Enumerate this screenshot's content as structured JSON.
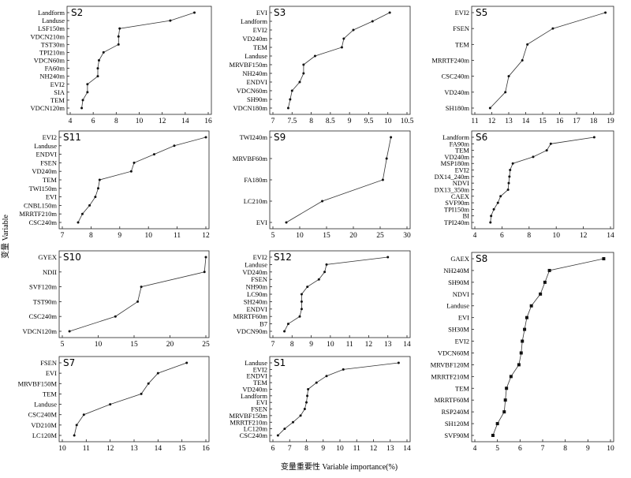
{
  "axis_label_x": "变量重要性 Variable importance(%)",
  "axis_label_y": "变量 Variable",
  "chart_data": [
    {
      "type": "line",
      "title": "S2",
      "variables": [
        "Landform",
        "Landuse",
        "LSF150m",
        "VDCN210m",
        "TST30m",
        "TPI210m",
        "VDCN60m",
        "FA60m",
        "NH240m",
        "EVI2",
        "SIA",
        "TEM",
        "VDCN120m"
      ],
      "values": [
        14.8,
        12.7,
        8.3,
        8.2,
        8.2,
        6.9,
        6.5,
        6.4,
        6.4,
        5.5,
        5.5,
        5.1,
        5.0
      ],
      "xlim": [
        4,
        16
      ],
      "xticks": [
        4,
        6,
        8,
        10,
        12,
        14,
        16
      ]
    },
    {
      "type": "line",
      "title": "S3",
      "variables": [
        "EVI",
        "Landform",
        "EVI2",
        "VD240m",
        "TEM",
        "Landuse",
        "MRVBF150m",
        "NH240m",
        "ENDVI",
        "VDCN60m",
        "SH90m",
        "VDCN180m"
      ],
      "values": [
        10.05,
        9.6,
        9.1,
        8.85,
        8.8,
        8.1,
        7.8,
        7.8,
        7.7,
        7.5,
        7.45,
        7.4
      ],
      "xlim": [
        7.0,
        10.5
      ],
      "xticks": [
        7.0,
        7.5,
        8.0,
        8.5,
        9.0,
        9.5,
        10.0,
        10.5
      ]
    },
    {
      "type": "line",
      "title": "S5",
      "variables": [
        "EVI2",
        "FSEN",
        "TEM",
        "MRRTF240m",
        "CSC240m",
        "VD240m",
        "SH180m"
      ],
      "values": [
        18.7,
        15.6,
        14.1,
        13.8,
        13.0,
        12.8,
        11.9
      ],
      "xlim": [
        11,
        19
      ],
      "xticks": [
        11,
        12,
        13,
        14,
        15,
        16,
        17,
        18,
        19
      ]
    },
    {
      "type": "line",
      "title": "S11",
      "variables": [
        "EVI2",
        "Landuse",
        "ENDVI",
        "FSEN",
        "VD240m",
        "TEM",
        "TWI150m",
        "EVI",
        "CNBL150m",
        "MRRTF210m",
        "CSC240m"
      ],
      "values": [
        12.0,
        10.9,
        10.2,
        9.5,
        9.4,
        8.3,
        8.25,
        8.15,
        7.95,
        7.7,
        7.55
      ],
      "xlim": [
        7,
        12
      ],
      "xticks": [
        7,
        8,
        9,
        10,
        11,
        12
      ]
    },
    {
      "type": "line",
      "title": "S9",
      "variables": [
        "TWI240m",
        "MRVBF60m",
        "FA180m",
        "LC210m",
        "EVI"
      ],
      "values": [
        27.0,
        26.2,
        25.5,
        14.2,
        7.5
      ],
      "xlim": [
        5,
        30
      ],
      "xticks": [
        5,
        10,
        15,
        20,
        25,
        30
      ]
    },
    {
      "type": "line",
      "title": "S6",
      "variables": [
        "Landform",
        "FA90m",
        "TEM",
        "VD240m",
        "MSP180m",
        "EVI2",
        "DX14_240m",
        "NDVI",
        "DX13_350m",
        "CAEX",
        "SVF90m",
        "TPI150m",
        "BI",
        "TPI240m"
      ],
      "values": [
        12.8,
        9.6,
        9.3,
        8.3,
        6.8,
        6.6,
        6.55,
        6.5,
        6.45,
        5.9,
        5.7,
        5.4,
        5.2,
        5.15
      ],
      "xlim": [
        4,
        14
      ],
      "xticks": [
        4,
        6,
        8,
        10,
        12,
        14
      ]
    },
    {
      "type": "line",
      "title": "S10",
      "variables": [
        "GYEX",
        "NDII",
        "SVF120m",
        "TST90m",
        "CSC240m",
        "VDCN120m"
      ],
      "values": [
        25.0,
        24.8,
        16.0,
        15.5,
        12.4,
        6.0
      ],
      "xlim": [
        5,
        25
      ],
      "xticks": [
        5,
        10,
        15,
        20,
        25
      ]
    },
    {
      "type": "line",
      "title": "S12",
      "variables": [
        "EVI2",
        "Landuse",
        "VD240m",
        "FSEN",
        "NH90m",
        "LC90m",
        "SH240m",
        "ENDVI",
        "MRRTF60m",
        "B7",
        "VDCN90m"
      ],
      "values": [
        13.0,
        9.8,
        9.7,
        9.4,
        8.8,
        8.5,
        8.5,
        8.5,
        8.4,
        7.8,
        7.6
      ],
      "xlim": [
        7,
        14
      ],
      "xticks": [
        7,
        8,
        9,
        10,
        11,
        12,
        13,
        14
      ]
    },
    {
      "type": "line",
      "title": "S8",
      "variables": [
        "GAEX",
        "NH240M",
        "SH90M",
        "NDVI",
        "Landuse",
        "EVI",
        "SH30M",
        "EVI2",
        "VDCN60M",
        "MRVBF120M",
        "MRRTF210M",
        "TEM",
        "MRRTF60M",
        "RSP240M",
        "SH120M",
        "SVF90M"
      ],
      "values": [
        9.7,
        7.3,
        7.1,
        6.9,
        6.5,
        6.3,
        6.2,
        6.1,
        6.05,
        5.95,
        5.6,
        5.4,
        5.35,
        5.3,
        5.0,
        4.8
      ],
      "xlim": [
        4,
        10
      ],
      "xticks": [
        4,
        5,
        6,
        7,
        8,
        9,
        10
      ]
    },
    {
      "type": "line",
      "title": "S7",
      "variables": [
        "FSEN",
        "EVI",
        "MRVBF150M",
        "TEM",
        "Landuse",
        "CSC240M",
        "VD210M",
        "LC120M"
      ],
      "values": [
        15.2,
        14.0,
        13.6,
        13.3,
        12.0,
        10.9,
        10.6,
        10.5
      ],
      "xlim": [
        10,
        16
      ],
      "xticks": [
        10,
        11,
        12,
        13,
        14,
        15,
        16
      ]
    },
    {
      "type": "line",
      "title": "S1",
      "variables": [
        "Landuse",
        "EVI2",
        "ENDVI",
        "TEM",
        "VD240m",
        "Landform",
        "EVI",
        "FSEN",
        "MRVBF150m",
        "MRRTF210m",
        "LC120m",
        "CSC240m"
      ],
      "values": [
        13.5,
        10.2,
        9.2,
        8.6,
        8.1,
        8.05,
        8.0,
        7.9,
        7.65,
        7.2,
        6.7,
        6.3
      ],
      "xlim": [
        6,
        14
      ],
      "xticks": [
        6,
        7,
        8,
        9,
        10,
        11,
        12,
        13,
        14
      ]
    }
  ]
}
